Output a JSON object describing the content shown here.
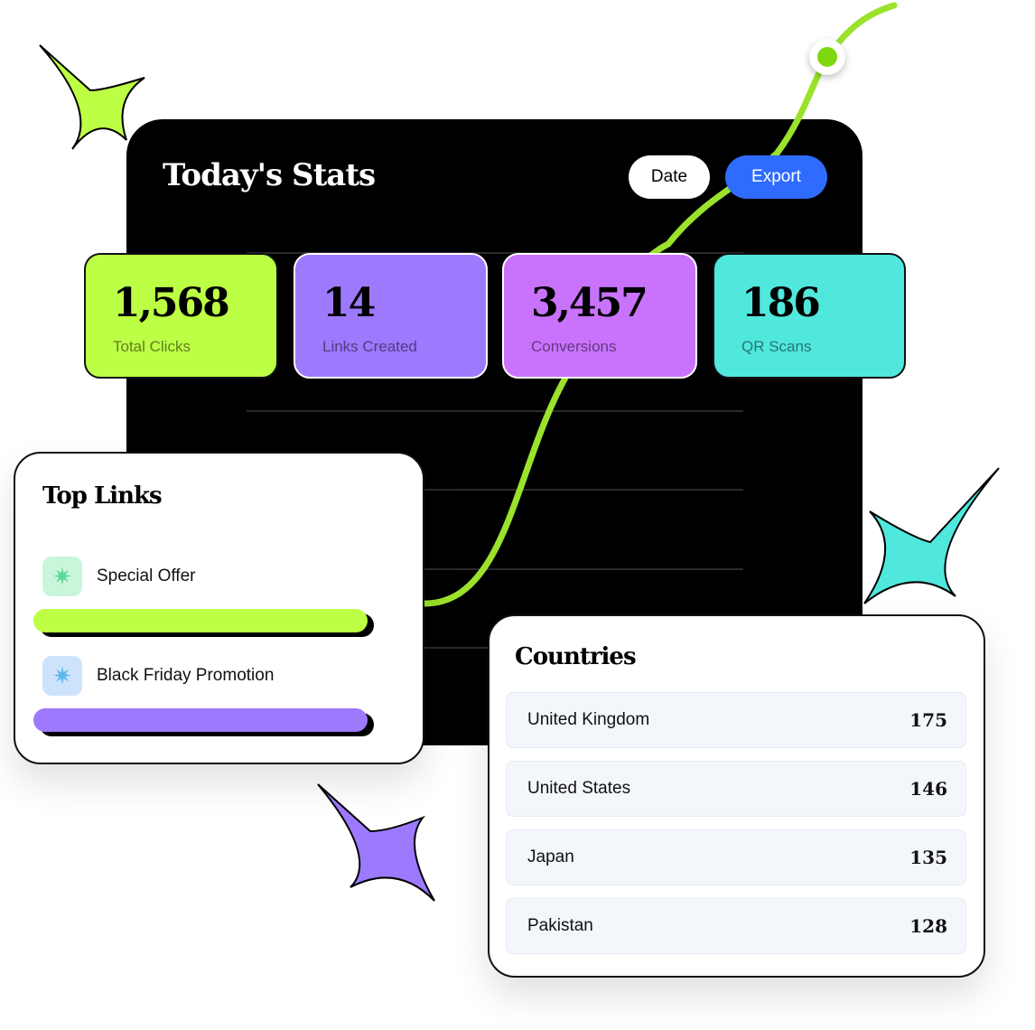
{
  "header": {
    "title": "Today's Stats",
    "date_label": "Date",
    "export_label": "Export"
  },
  "stats": [
    {
      "value": "1,568",
      "label": "Total Clicks",
      "color": "#bdff45"
    },
    {
      "value": "14",
      "label": "Links Created",
      "color": "#9d79fd"
    },
    {
      "value": "3,457",
      "label": "Conversions",
      "color": "#c973fd"
    },
    {
      "value": "186",
      "label": "QR Scans",
      "color": "#50e8dd"
    }
  ],
  "top_links": {
    "title": "Top Links",
    "items": [
      {
        "label": "Special Offer",
        "icon": "sparkle-icon",
        "bar_color": "#bdff45"
      },
      {
        "label": "Black Friday Promotion",
        "icon": "sparkle-icon",
        "bar_color": "#9d79fd"
      }
    ]
  },
  "countries": {
    "title": "Countries",
    "rows": [
      {
        "name": "United Kingdom",
        "value": "175"
      },
      {
        "name": "United States",
        "value": "146"
      },
      {
        "name": "Japan",
        "value": "135"
      },
      {
        "name": "Pakistan",
        "value": "128"
      }
    ]
  },
  "colors": {
    "accent_blue": "#2f6bff",
    "line_green": "#9be22b"
  }
}
